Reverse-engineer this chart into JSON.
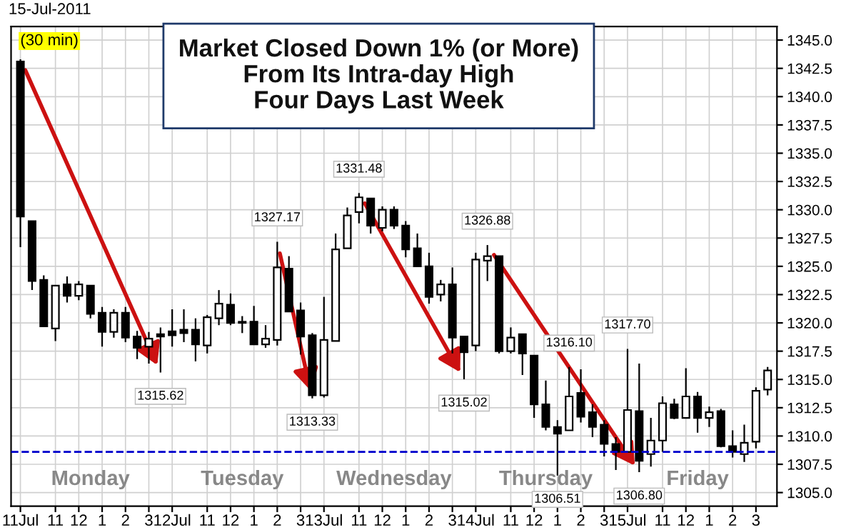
{
  "chart_data": {
    "type": "candlestick",
    "title": "Market Closed Down 1% (or More)\nFrom Its Intra-day High\nFour Days Last Week",
    "categories": [
      "11Jul",
      null,
      null,
      "11",
      null,
      "12",
      null,
      "1",
      null,
      "2",
      null,
      "3",
      null,
      "12Jul",
      null,
      null,
      "11",
      null,
      "12",
      null,
      "1",
      null,
      "2",
      null,
      "3",
      null,
      "13Jul",
      null,
      null,
      "11",
      null,
      "12",
      null,
      "1",
      null,
      "2",
      null,
      "3",
      null,
      "14Jul",
      null,
      null,
      "11",
      null,
      "12",
      null,
      "1",
      null,
      "2",
      null,
      "3",
      null,
      "15Jul",
      null,
      null,
      "11",
      null,
      "12",
      null,
      "1",
      null,
      "2",
      null,
      "3",
      null
    ],
    "ohlc": [
      [
        1343.1,
        1343.3,
        1326.7,
        1329.4
      ],
      [
        1329.0,
        1329.0,
        1322.9,
        1323.7
      ],
      [
        1323.8,
        1324.2,
        1319.7,
        1319.7
      ],
      [
        1319.5,
        1323.3,
        1318.4,
        1323.3
      ],
      [
        1323.4,
        1324.1,
        1321.8,
        1322.4
      ],
      [
        1322.4,
        1323.7,
        1322.0,
        1323.4
      ],
      [
        1323.3,
        1323.3,
        1320.4,
        1320.8
      ],
      [
        1320.9,
        1321.4,
        1317.9,
        1319.2
      ],
      [
        1319.2,
        1321.2,
        1318.7,
        1320.9
      ],
      [
        1320.9,
        1321.4,
        1318.3,
        1318.7
      ],
      [
        1318.8,
        1319.3,
        1316.8,
        1317.8
      ],
      [
        1317.9,
        1319.2,
        1316.4,
        1318.6
      ],
      [
        1319.0,
        1319.6,
        1315.62,
        1318.8
      ],
      [
        1319.25,
        1321.2,
        1317.9,
        1318.9
      ],
      [
        1319.4,
        1321.2,
        1318.3,
        1319.1
      ],
      [
        1319.4,
        1320.4,
        1316.6,
        1318.1
      ],
      [
        1318.0,
        1320.7,
        1317.3,
        1320.5
      ],
      [
        1320.4,
        1322.9,
        1319.8,
        1321.7
      ],
      [
        1321.6,
        1322.6,
        1319.8,
        1320.0
      ],
      [
        1320.0,
        1320.6,
        1319.1,
        1320.1
      ],
      [
        1320.1,
        1321.5,
        1318.1,
        1318.1
      ],
      [
        1318.1,
        1319.8,
        1317.8,
        1318.6
      ],
      [
        1318.5,
        1327.17,
        1318.0,
        1324.9
      ],
      [
        1324.8,
        1325.9,
        1321.0,
        1321.0
      ],
      [
        1321.1,
        1321.8,
        1317.2,
        1318.8
      ],
      [
        1318.9,
        1319.1,
        1313.33,
        1313.6
      ],
      [
        1313.6,
        1322.3,
        1313.4,
        1318.5
      ],
      [
        1318.4,
        1327.9,
        1318.4,
        1326.5
      ],
      [
        1326.6,
        1330.2,
        1326.6,
        1329.5
      ],
      [
        1329.8,
        1331.48,
        1328.8,
        1331.1
      ],
      [
        1331.0,
        1331.0,
        1327.9,
        1328.6
      ],
      [
        1328.4,
        1330.3,
        1328.1,
        1330.0
      ],
      [
        1330.0,
        1330.3,
        1328.3,
        1328.6
      ],
      [
        1328.6,
        1329.0,
        1325.8,
        1326.5
      ],
      [
        1326.6,
        1327.9,
        1325.0,
        1325.0
      ],
      [
        1325.0,
        1326.2,
        1321.7,
        1322.3
      ],
      [
        1322.5,
        1323.8,
        1321.9,
        1323.4
      ],
      [
        1323.4,
        1324.9,
        1317.3,
        1318.7
      ],
      [
        1318.8,
        1318.8,
        1315.02,
        1317.4
      ],
      [
        1318.0,
        1326.2,
        1317.5,
        1325.6
      ],
      [
        1325.5,
        1326.88,
        1323.7,
        1325.9
      ],
      [
        1325.9,
        1325.9,
        1317.3,
        1317.5
      ],
      [
        1317.5,
        1319.6,
        1317.3,
        1318.7
      ],
      [
        1319.0,
        1319.0,
        1315.4,
        1317.3
      ],
      [
        1317.1,
        1317.1,
        1311.6,
        1312.8
      ],
      [
        1312.8,
        1314.9,
        1310.5,
        1310.8
      ],
      [
        1310.8,
        1311.4,
        1306.51,
        1310.2
      ],
      [
        1310.5,
        1316.1,
        1310.5,
        1313.5
      ],
      [
        1313.8,
        1315.9,
        1311.2,
        1311.7
      ],
      [
        1312.1,
        1312.8,
        1309.9,
        1310.8
      ],
      [
        1311.0,
        1311.4,
        1308.2,
        1309.3
      ],
      [
        1309.3,
        1309.9,
        1307.0,
        1308.6
      ],
      [
        1308.6,
        1317.7,
        1308.6,
        1312.3
      ],
      [
        1312.2,
        1316.4,
        1306.8,
        1307.8
      ],
      [
        1308.4,
        1311.6,
        1307.3,
        1309.6
      ],
      [
        1309.6,
        1313.5,
        1308.6,
        1312.9
      ],
      [
        1312.8,
        1313.3,
        1311.5,
        1311.6
      ],
      [
        1311.6,
        1316.0,
        1311.6,
        1313.5
      ],
      [
        1313.5,
        1313.9,
        1310.3,
        1311.6
      ],
      [
        1311.6,
        1312.6,
        1310.8,
        1312.1
      ],
      [
        1312.2,
        1312.4,
        1309.0,
        1309.1
      ],
      [
        1309.1,
        1310.5,
        1308.1,
        1308.6
      ],
      [
        1308.4,
        1311.0,
        1307.7,
        1309.4
      ],
      [
        1309.5,
        1314.3,
        1308.9,
        1314.0
      ],
      [
        1314.1,
        1316.1,
        1313.6,
        1315.8
      ]
    ],
    "ylim": [
      1303.8,
      1346.2
    ],
    "yticks": [
      {
        "value": 1305,
        "label": "1305.0"
      },
      {
        "value": 1307.5,
        "label": "1307.5"
      },
      {
        "value": 1310,
        "label": "1310.0"
      },
      {
        "value": 1312.5,
        "label": "1312.5"
      },
      {
        "value": 1315,
        "label": "1315.0"
      },
      {
        "value": 1317.5,
        "label": "1317.5"
      },
      {
        "value": 1320,
        "label": "1320.0"
      },
      {
        "value": 1322.5,
        "label": "1322.5"
      },
      {
        "value": 1325,
        "label": "1325.0"
      },
      {
        "value": 1327.5,
        "label": "1327.5"
      },
      {
        "value": 1330,
        "label": "1330.0"
      },
      {
        "value": 1332.5,
        "label": "1332.5"
      },
      {
        "value": 1335,
        "label": "1335.0"
      },
      {
        "value": 1337.5,
        "label": "1337.5"
      },
      {
        "value": 1340,
        "label": "1340.0"
      },
      {
        "value": 1342.5,
        "label": "1342.5"
      },
      {
        "value": 1345,
        "label": "1345.0"
      }
    ],
    "grid": true,
    "ref_lines": [
      {
        "axis": "y",
        "value": 1308.6,
        "color": "#0000cc",
        "line_style": "dashed"
      }
    ],
    "annotations": [
      "15-Jul-2011",
      "(30 min)",
      "Monday",
      "Tuesday",
      "Wednesday",
      "Thursday",
      "Friday",
      {
        "text": "1315.62",
        "y": 1315.62
      },
      {
        "text": "1327.17",
        "y": 1327.17
      },
      {
        "text": "1313.33",
        "y": 1313.33
      },
      {
        "text": "1331.48",
        "y": 1331.48
      },
      {
        "text": "1315.02",
        "y": 1315.02
      },
      {
        "text": "1326.88",
        "y": 1326.88
      },
      {
        "text": "1316.10",
        "y": 1316.1
      },
      {
        "text": "1306.51",
        "y": 1306.51
      },
      {
        "text": "1317.70",
        "y": 1317.7
      },
      {
        "text": "1306.80",
        "y": 1306.8
      }
    ]
  }
}
